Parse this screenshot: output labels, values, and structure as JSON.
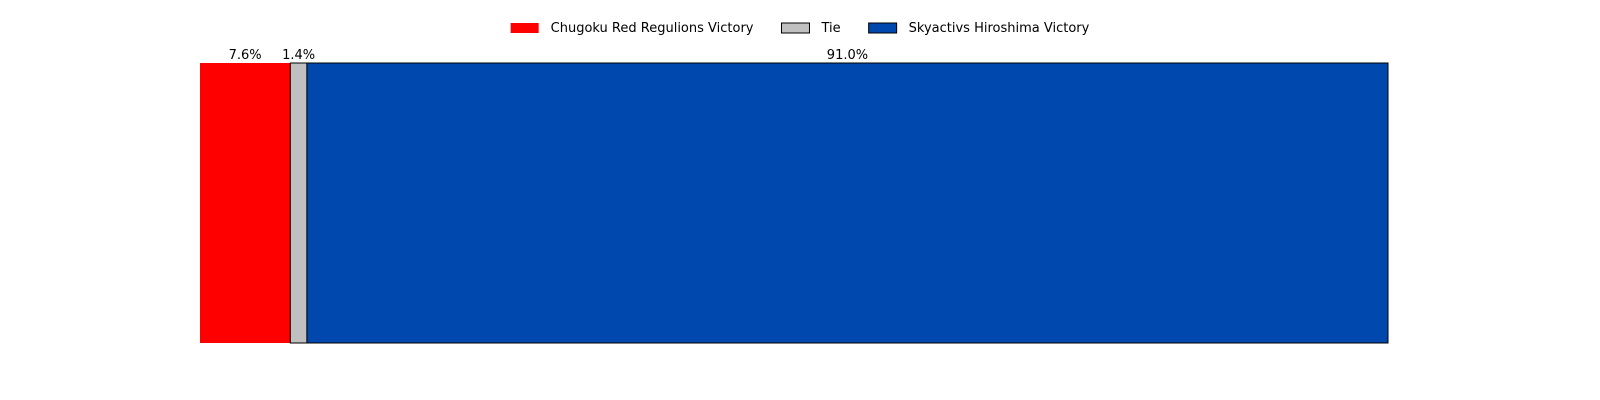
{
  "chart_data": {
    "type": "bar",
    "orientation": "horizontal-stacked",
    "categories": [
      ""
    ],
    "series": [
      {
        "name": "Chugoku Red Regulions Victory",
        "values": [
          7.6
        ],
        "label": "7.6%",
        "color": "#ff0000",
        "outlined": false
      },
      {
        "name": "Tie",
        "values": [
          1.4
        ],
        "label": "1.4%",
        "color": "#c0c0c0",
        "outlined": true
      },
      {
        "name": "Skyactivs Hiroshima Victory",
        "values": [
          91.0
        ],
        "label": "91.0%",
        "color": "#0048ad",
        "outlined": true
      }
    ],
    "xlim": [
      0,
      100
    ],
    "axes_visible": false,
    "grid": false,
    "legend_position": "top-center"
  }
}
